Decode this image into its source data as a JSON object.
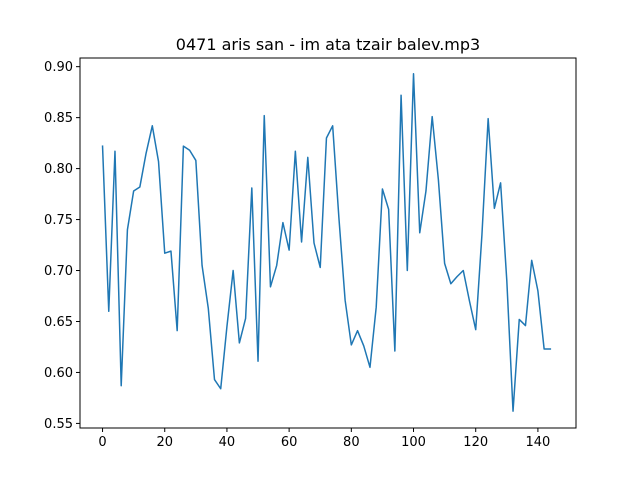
{
  "chart_data": {
    "type": "line",
    "title": "0471 aris san - im ata tzair balev.mp3",
    "xlabel": "",
    "ylabel": "",
    "xlim": [
      -7.25,
      152.25
    ],
    "ylim": [
      0.5455,
      0.9085
    ],
    "xticks": [
      0,
      20,
      40,
      60,
      80,
      100,
      120,
      140
    ],
    "xtick_labels": [
      "0",
      "20",
      "40",
      "60",
      "80",
      "100",
      "120",
      "140"
    ],
    "yticks": [
      0.55,
      0.6,
      0.65,
      0.7,
      0.75,
      0.8,
      0.85,
      0.9
    ],
    "ytick_labels": [
      "0.55",
      "0.60",
      "0.65",
      "0.70",
      "0.75",
      "0.80",
      "0.85",
      "0.90"
    ],
    "grid": false,
    "legend": "none",
    "series": [
      {
        "color": "#1f77b4",
        "x": [
          0,
          2,
          4,
          6,
          8,
          10,
          12,
          14,
          16,
          18,
          20,
          22,
          24,
          26,
          28,
          30,
          32,
          34,
          36,
          38,
          40,
          42,
          44,
          46,
          48,
          50,
          52,
          54,
          56,
          58,
          60,
          62,
          64,
          66,
          68,
          70,
          72,
          74,
          76,
          78,
          80,
          82,
          84,
          86,
          88,
          90,
          92,
          94,
          96,
          98,
          100,
          102,
          104,
          106,
          108,
          110,
          112,
          114,
          116,
          118,
          120,
          122,
          124,
          126,
          128,
          130,
          132,
          134,
          136,
          138,
          140,
          142,
          144
        ],
        "y": [
          0.822,
          0.66,
          0.817,
          0.587,
          0.74,
          0.778,
          0.782,
          0.815,
          0.842,
          0.807,
          0.717,
          0.719,
          0.641,
          0.822,
          0.818,
          0.808,
          0.705,
          0.663,
          0.593,
          0.584,
          0.645,
          0.7,
          0.629,
          0.653,
          0.781,
          0.611,
          0.852,
          0.684,
          0.705,
          0.747,
          0.72,
          0.817,
          0.728,
          0.811,
          0.727,
          0.703,
          0.83,
          0.842,
          0.752,
          0.671,
          0.627,
          0.641,
          0.626,
          0.605,
          0.664,
          0.78,
          0.76,
          0.621,
          0.872,
          0.7,
          0.893,
          0.737,
          0.778,
          0.851,
          0.789,
          0.707,
          0.687,
          0.694,
          0.7,
          0.67,
          0.642,
          0.735,
          0.849,
          0.761,
          0.786,
          0.69,
          0.562,
          0.652,
          0.646,
          0.71,
          0.68,
          0.623,
          0.623
        ]
      }
    ]
  }
}
